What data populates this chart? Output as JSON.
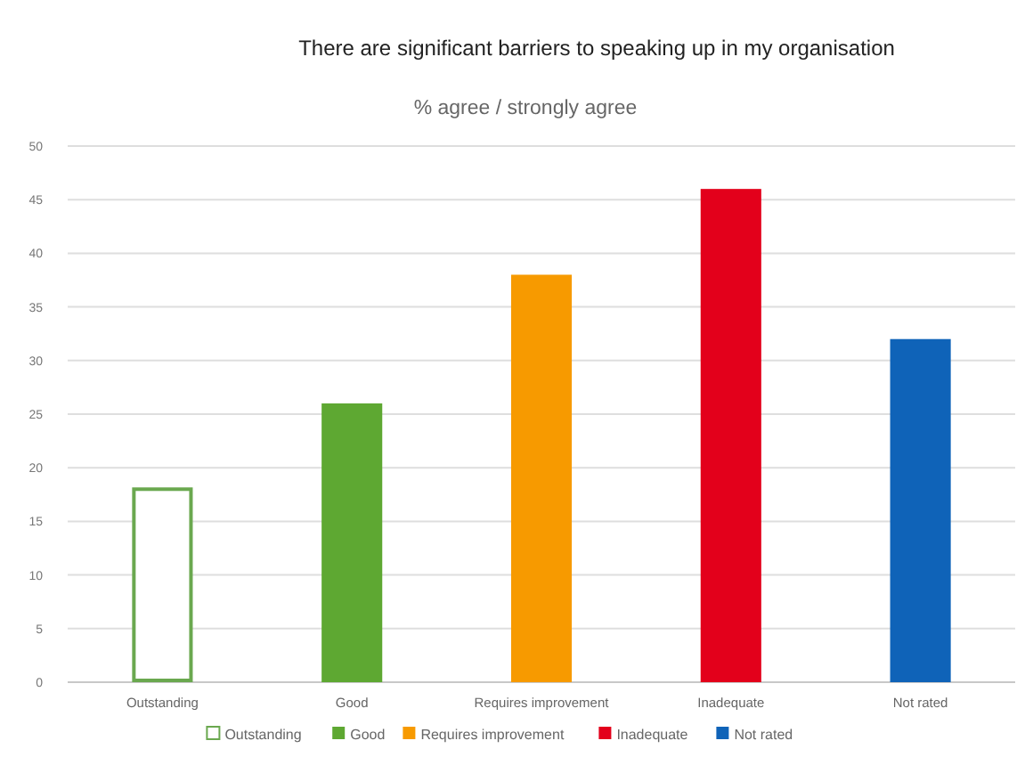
{
  "chart_data": {
    "type": "bar",
    "title": "There are significant barriers to speaking up in my organisation",
    "subtitle": "% agree / strongly agree",
    "categories": [
      "Outstanding",
      "Good",
      "Requires improvement",
      "Inadequate",
      "Not rated"
    ],
    "series": [
      {
        "name": "Outstanding",
        "color": "#ffffff",
        "values": [
          18,
          null,
          null,
          null,
          null
        ]
      },
      {
        "name": "Good",
        "color": "#5ea832",
        "values": [
          null,
          26,
          null,
          null,
          null
        ]
      },
      {
        "name": "Requires improvement",
        "color": "#f79a00",
        "values": [
          null,
          null,
          38,
          null,
          null
        ]
      },
      {
        "name": "Inadequate",
        "color": "#e3001b",
        "values": [
          null,
          null,
          null,
          46,
          null
        ]
      },
      {
        "name": "Not rated",
        "color": "#0f63b8",
        "values": [
          null,
          null,
          null,
          null,
          32
        ]
      }
    ],
    "ylim": [
      0,
      50
    ],
    "yticks": [
      0,
      5,
      10,
      15,
      20,
      25,
      30,
      35,
      40,
      45,
      50
    ],
    "grid": "y",
    "legend": "bottom"
  }
}
